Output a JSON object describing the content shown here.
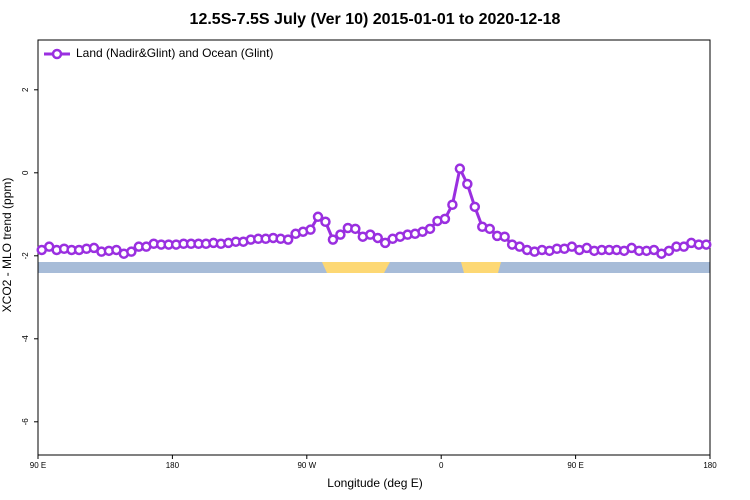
{
  "chart_data": {
    "type": "line",
    "title": "12.5S-7.5S July (Ver 10)   2015-01-01 to 2020-12-18",
    "xlabel": "Longitude (deg E)",
    "ylabel": "XCO2 - MLO trend (ppm)",
    "x": [
      92.5,
      97.5,
      102.5,
      107.5,
      112.5,
      117.5,
      122.5,
      127.5,
      132.5,
      137.5,
      142.5,
      147.5,
      152.5,
      157.5,
      162.5,
      167.5,
      172.5,
      177.5,
      182.5,
      187.5,
      192.5,
      197.5,
      202.5,
      207.5,
      212.5,
      217.5,
      222.5,
      227.5,
      232.5,
      237.5,
      242.5,
      247.5,
      252.5,
      257.5,
      262.5,
      267.5,
      272.5,
      277.5,
      282.5,
      287.5,
      292.5,
      297.5,
      302.5,
      307.5,
      312.5,
      317.5,
      322.5,
      327.5,
      332.5,
      337.5,
      342.5,
      347.5,
      352.5,
      357.5,
      362.5,
      367.5,
      372.5,
      377.5,
      382.5,
      387.5,
      392.5,
      397.5,
      402.5,
      407.5,
      412.5,
      417.5,
      422.5,
      427.5,
      432.5,
      437.5,
      442.5,
      447.5,
      452.5,
      457.5,
      462.5,
      467.5,
      472.5,
      477.5,
      482.5,
      487.5,
      492.5,
      497.5,
      502.5,
      507.5,
      512.5,
      517.5,
      522.5,
      527.5,
      532.5,
      537.5
    ],
    "series": [
      {
        "name": "Land (Nadir&Glint) and Ocean (Glint)",
        "color": "#9a2fe0",
        "values": [
          -1.86,
          -1.78,
          -1.86,
          -1.83,
          -1.86,
          -1.86,
          -1.83,
          -1.81,
          -1.9,
          -1.88,
          -1.86,
          -1.95,
          -1.9,
          -1.78,
          -1.78,
          -1.71,
          -1.73,
          -1.73,
          -1.73,
          -1.71,
          -1.71,
          -1.71,
          -1.71,
          -1.69,
          -1.71,
          -1.69,
          -1.66,
          -1.66,
          -1.61,
          -1.59,
          -1.59,
          -1.57,
          -1.59,
          -1.61,
          -1.47,
          -1.42,
          -1.37,
          -1.06,
          -1.18,
          -1.61,
          -1.49,
          -1.33,
          -1.35,
          -1.54,
          -1.49,
          -1.57,
          -1.69,
          -1.59,
          -1.54,
          -1.49,
          -1.47,
          -1.42,
          -1.35,
          -1.16,
          -1.11,
          -0.77,
          0.1,
          -0.27,
          -0.82,
          -1.3,
          -1.35,
          -1.52,
          -1.54,
          -1.73,
          -1.78,
          -1.86,
          -1.9,
          -1.86,
          -1.88,
          -1.83,
          -1.83,
          -1.78,
          -1.86,
          -1.81,
          -1.88,
          -1.86,
          -1.86,
          -1.86,
          -1.88,
          -1.81,
          -1.88,
          -1.88,
          -1.86,
          -1.95,
          -1.88,
          -1.78,
          -1.78,
          -1.69,
          -1.73,
          -1.73
        ]
      }
    ],
    "xlim": [
      90,
      540
    ],
    "xticks": [
      {
        "value": 90,
        "label": "90 E"
      },
      180,
      {
        "value": 270,
        "label": "90 W"
      },
      {
        "value": 360,
        "label": "0"
      },
      {
        "value": 450,
        "label": "90 E"
      },
      180
    ],
    "ylim": [
      -6.8,
      3.2
    ],
    "yticks": [
      -6,
      -4,
      -2,
      0,
      2
    ],
    "legend": "top-left"
  }
}
